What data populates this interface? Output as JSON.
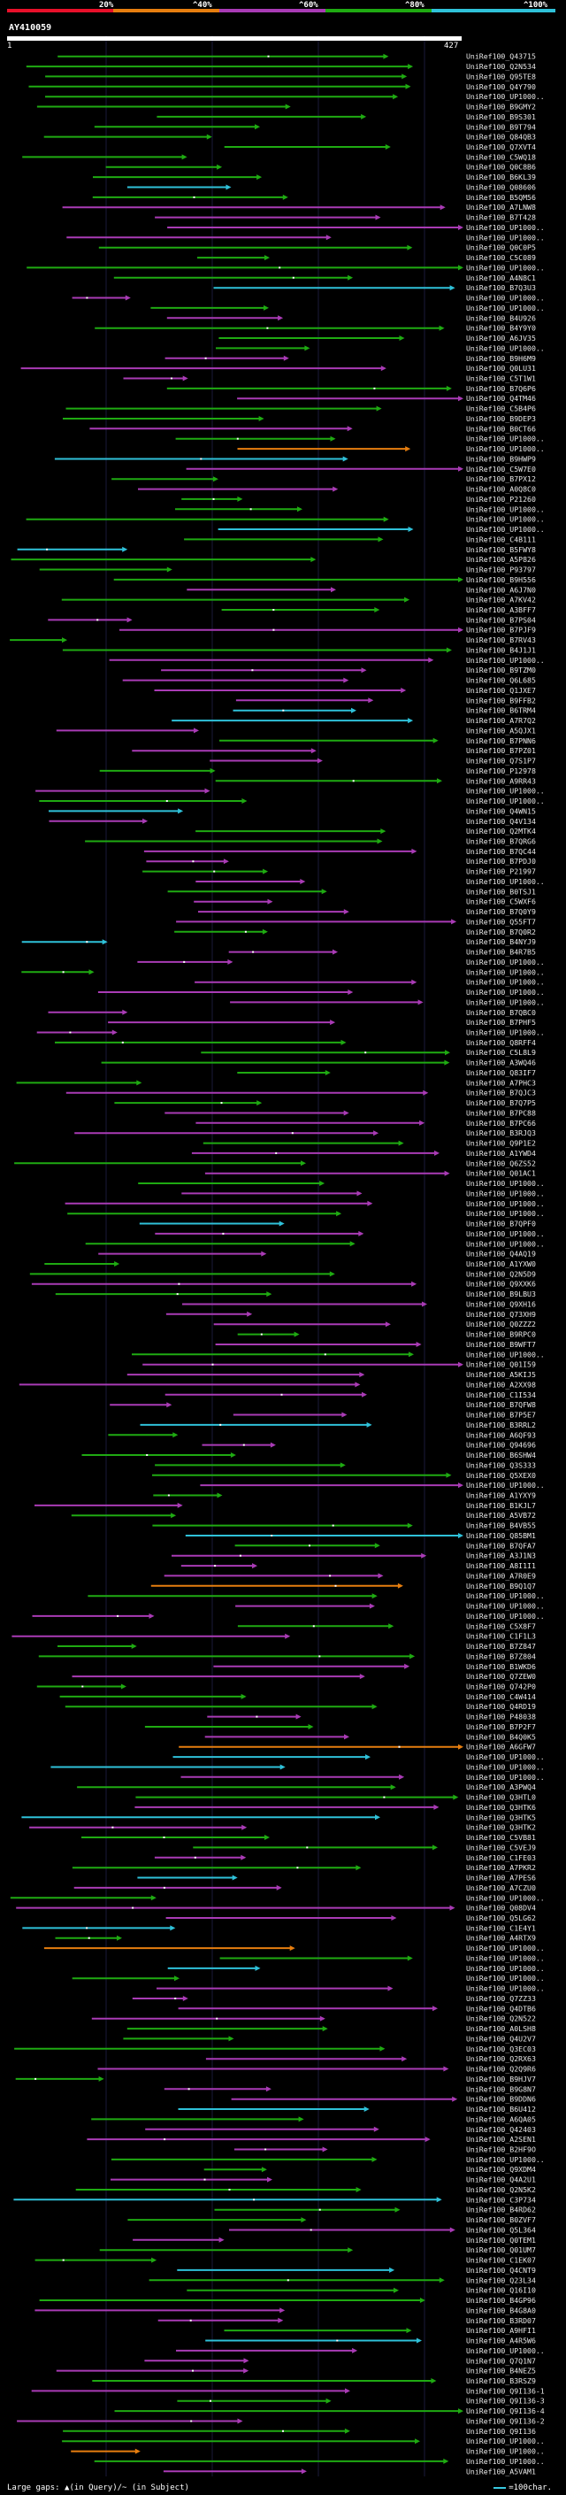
{
  "legend": {
    "ticks": [
      "20%",
      "^40%",
      "^60%",
      "^80%",
      "^100%"
    ],
    "colors": [
      "#e8102a",
      "#e67e0f",
      "#a93bb5",
      "#1faa12",
      "#2fc1d9"
    ]
  },
  "query": {
    "name": "AY410059",
    "start": "1",
    "end": "427"
  },
  "footer": {
    "gap_legend": "Large gaps: ▲(in Query)/~ (in Subject)",
    "scale_legend": "=100char."
  },
  "hits": [
    "UniRef100_Q43715",
    "UniRef100_Q2N534",
    "UniRef100_Q95TE8",
    "UniRef100_Q4Y790",
    "UniRef100_UP1000..",
    "UniRef100_B9GMY2",
    "UniRef100_B9S301",
    "UniRef100_B9T794",
    "UniRef100_Q84QB3",
    "UniRef100_Q7XVT4",
    "UniRef100_C5WQ18",
    "UniRef100_Q0C8B6",
    "UniRef100_B6KL39",
    "UniRef100_Q08606",
    "UniRef100_B5QM56",
    "UniRef100_A7LNW8",
    "UniRef100_B7T428",
    "UniRef100_UP1000..",
    "UniRef100_UP1000..",
    "UniRef100_Q0C0P5",
    "UniRef100_C5C089",
    "UniRef100_UP1000..",
    "UniRef100_A4N8C1",
    "UniRef100_B7Q3U3",
    "UniRef100_UP1000..",
    "UniRef100_UP1000..",
    "UniRef100_B4U926",
    "UniRef100_B4Y9Y0",
    "UniRef100_A6JV35",
    "UniRef100_UP1000..",
    "UniRef100_B9H6M9",
    "UniRef100_Q0LU31",
    "UniRef100_C5T1W1",
    "UniRef100_B7Q6P6",
    "UniRef100_Q4TM46",
    "UniRef100_C5B4P6",
    "UniRef100_B9DEP3",
    "UniRef100_B0CT66",
    "UniRef100_UP1000..",
    "UniRef100_UP1000..",
    "UniRef100_B9HWP9",
    "UniRef100_C5W7E0",
    "UniRef100_B7PX12",
    "UniRef100_A0Q8C0",
    "UniRef100_P21260",
    "UniRef100_UP1000..",
    "UniRef100_UP1000..",
    "UniRef100_UP1000..",
    "UniRef100_C4B111",
    "UniRef100_B5FWY8",
    "UniRef100_A5P826",
    "UniRef100_P93797",
    "UniRef100_B9H556",
    "UniRef100_A6J7N0",
    "UniRef100_A7KV42",
    "UniRef100_A3BFF7",
    "UniRef100_B7PS04",
    "UniRef100_B7PJF9",
    "UniRef100_B7RV43",
    "UniRef100_B4J1J1",
    "UniRef100_UP1000..",
    "UniRef100_B9TZM0",
    "UniRef100_Q6L685",
    "UniRef100_Q1JXE7",
    "UniRef100_B9FFB2",
    "UniRef100_B6TRM4",
    "UniRef100_A7R7Q2",
    "UniRef100_A5QJX1",
    "UniRef100_B7PNN6",
    "UniRef100_B7PZ01",
    "UniRef100_Q7S1P7",
    "UniRef100_P12978",
    "UniRef100_A9RR43",
    "UniRef100_UP1000..",
    "UniRef100_UP1000..",
    "UniRef100_Q4WN15",
    "UniRef100_Q4V134",
    "UniRef100_Q2MTK4",
    "UniRef100_B7QRG6",
    "UniRef100_B7QC44",
    "UniRef100_B7PDJ0",
    "UniRef100_P21997",
    "UniRef100_UP1000..",
    "UniRef100_B0TSJ1",
    "UniRef100_C5WXF6",
    "UniRef100_B7Q0Y9",
    "UniRef100_Q55FT7",
    "UniRef100_B7Q0R2",
    "UniRef100_B4NYJ9",
    "UniRef100_B4R7B5",
    "UniRef100_UP1000..",
    "UniRef100_UP1000..",
    "UniRef100_UP1000..",
    "UniRef100_UP1000..",
    "UniRef100_UP1000..",
    "UniRef100_B7QBC0",
    "UniRef100_B7PHF5",
    "UniRef100_UP1000..",
    "UniRef100_Q8RFF4",
    "UniRef100_C5L8L9",
    "UniRef100_A3WQ46",
    "UniRef100_Q83IF7",
    "UniRef100_A7PHC3",
    "UniRef100_B7QJC3",
    "UniRef100_B7Q7P5",
    "UniRef100_B7PC88",
    "UniRef100_B7PC66",
    "UniRef100_B3RJQ3",
    "UniRef100_Q9P1E2",
    "UniRef100_A1YWD4",
    "UniRef100_Q6ZS52",
    "UniRef100_Q01AC1",
    "UniRef100_UP1000..",
    "UniRef100_UP1000..",
    "UniRef100_UP1000..",
    "UniRef100_UP1000..",
    "UniRef100_B7QPF0",
    "UniRef100_UP1000..",
    "UniRef100_UP1000..",
    "UniRef100_Q4AQ19",
    "UniRef100_A1YXW0",
    "UniRef100_Q2N5D9",
    "UniRef100_Q9XXK6",
    "UniRef100_B9LBU3",
    "UniRef100_Q9XH16",
    "UniRef100_Q73XH9",
    "UniRef100_Q0ZZZ2",
    "UniRef100_B9RPC0",
    "UniRef100_B9WFT7",
    "UniRef100_UP1000..",
    "UniRef100_Q01I59",
    "UniRef100_A5KIJ5",
    "UniRef100_A2XX98",
    "UniRef100_C1I534",
    "UniRef100_B7QFW8",
    "UniRef100_B7P5E7",
    "UniRef100_B3RRL2",
    "UniRef100_A6QF93",
    "UniRef100_Q94696",
    "UniRef100_B6SHW4",
    "UniRef100_Q3S333",
    "UniRef100_Q5XEX0",
    "UniRef100_UP1000..",
    "UniRef100_A1YXY9",
    "UniRef100_B1KJL7",
    "UniRef100_A5VB72",
    "UniRef100_B4VB55",
    "UniRef100_Q85BM1",
    "UniRef100_B7QFA7",
    "UniRef100_A3J1N3",
    "UniRef100_A8I1I1",
    "UniRef100_A7R0E9",
    "UniRef100_B9Q1Q7",
    "UniRef100_UP1000..",
    "UniRef100_UP1000..",
    "UniRef100_UP1000..",
    "UniRef100_C5X8F7",
    "UniRef100_C1F1L3",
    "UniRef100_B7Z847",
    "UniRef100_B7Z804",
    "UniRef100_B1WKD6",
    "UniRef100_Q7ZEW0",
    "UniRef100_Q742P0",
    "UniRef100_C4W414",
    "UniRef100_Q4RD19",
    "UniRef100_P48038",
    "UniRef100_B7P2F7",
    "UniRef100_B4Q0K5",
    "UniRef100_A6GFW7",
    "UniRef100_UP1000..",
    "UniRef100_UP1000..",
    "UniRef100_UP1000..",
    "UniRef100_A3PWQ4",
    "UniRef100_Q3HTL0",
    "UniRef100_Q3HTK6",
    "UniRef100_Q3HTK5",
    "UniRef100_Q3HTK2",
    "UniRef100_C5VB81",
    "UniRef100_C5VEJ9",
    "UniRef100_C1FE03",
    "UniRef100_A7PKR2",
    "UniRef100_A7PES6",
    "UniRef100_A7CZU0",
    "UniRef100_UP1000..",
    "UniRef100_Q08DV4",
    "UniRef100_Q5LG62",
    "UniRef100_C1E4Y1",
    "UniRef100_A4RTX9",
    "UniRef100_UP1000..",
    "UniRef100_UP1000..",
    "UniRef100_UP1000..",
    "UniRef100_UP1000..",
    "UniRef100_UP1000..",
    "UniRef100_Q7ZZ33",
    "UniRef100_Q4DTB6",
    "UniRef100_Q2N522",
    "UniRef100_A0LSH8",
    "UniRef100_Q4U2V7",
    "UniRef100_Q3EC03",
    "UniRef100_Q2RX63",
    "UniRef100_Q2Q9R6",
    "UniRef100_B9HJV7",
    "UniRef100_B9G8N7",
    "UniRef100_B9DDN6",
    "UniRef100_B6U412",
    "UniRef100_A6QA05",
    "UniRef100_Q42403",
    "UniRef100_A2SEN1",
    "UniRef100_B2HF9O",
    "UniRef100_UP1000..",
    "UniRef100_Q9XDM4",
    "UniRef100_Q4A2U1",
    "UniRef100_Q2N5K2",
    "UniRef100_C3P734",
    "UniRef100_B4RD62",
    "UniRef100_B0ZVF7",
    "UniRef100_Q5L364",
    "UniRef100_Q0TEM1",
    "UniRef100_Q01UM7",
    "UniRef100_C1EK07",
    "UniRef100_Q4CNT9",
    "UniRef100_Q23L34",
    "UniRef100_Q16I10",
    "UniRef100_B4GP96",
    "UniRef100_B4G8A0",
    "UniRef100_B3RD07",
    "UniRef100_A9HFI1",
    "UniRef100_A4R5W6",
    "UniRef100_UP1000..",
    "UniRef100_Q7Q1N7",
    "UniRef100_B4NEZ5",
    "UniRef100_B3RSZ9",
    "UniRef100_Q9I136-1",
    "UniRef100_Q9I136-3",
    "UniRef100_Q9I136-4",
    "UniRef100_Q9I136-2",
    "UniRef100_Q9I136",
    "UniRef100_UP1000..",
    "UniRef100_UP1000..",
    "UniRef100_UP1000..",
    "UniRef100_A5VAM1"
  ]
}
